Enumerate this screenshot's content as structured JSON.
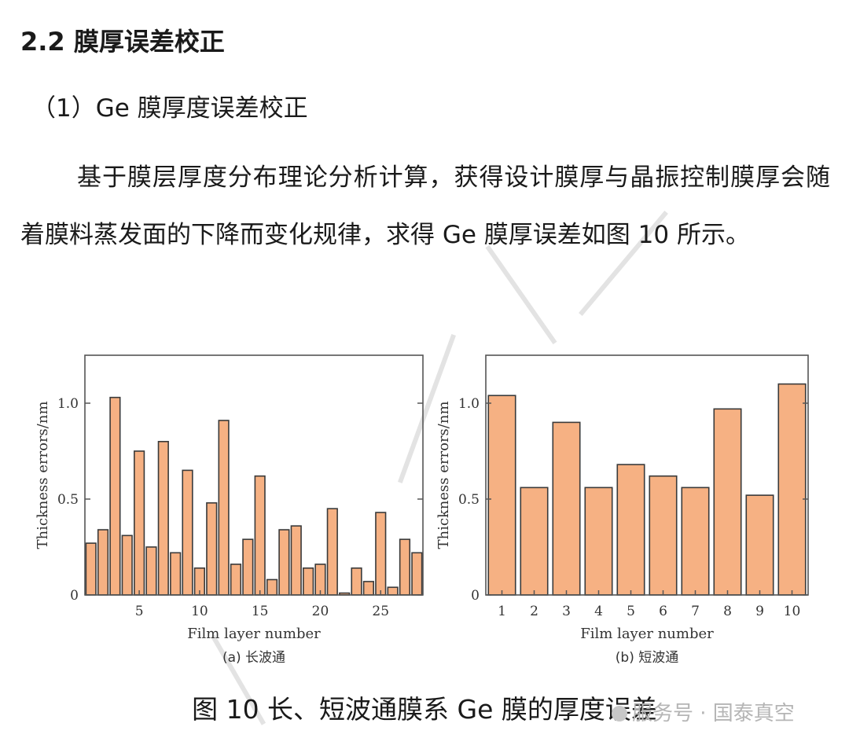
{
  "section": {
    "heading": "2.2  膜厚误差校正",
    "subheading": "（1）Ge 膜厚度误差校正",
    "paragraph": "基于膜层厚度分布理论分析计算，获得设计膜厚与晶振控制膜厚会随着膜料蒸发面的下降而变化规律，求得 Ge 膜厚误差如图 10 所示。"
  },
  "figure": {
    "caption": "图 10  长、短波通膜系 Ge 膜的厚度误差"
  },
  "watermark": {
    "text": "服务号 · 国泰真空"
  },
  "colors": {
    "bar_fill": "#F6B183",
    "bar_stroke": "#3a3a3a"
  },
  "chart_data": [
    {
      "type": "bar",
      "caption": "(a) 长波通",
      "xlabel": "Film layer number",
      "ylabel": "Thickness errors/nm",
      "ylim": [
        0,
        1.25
      ],
      "xlim": [
        0.5,
        28.5
      ],
      "yticks": [
        0,
        0.5,
        1.0
      ],
      "ytick_labels": [
        "0",
        "0.5",
        "1.0"
      ],
      "xticks": [
        5,
        10,
        15,
        20,
        25
      ],
      "xtick_labels": [
        "5",
        "10",
        "15",
        "20",
        "25"
      ],
      "x": [
        1,
        2,
        3,
        4,
        5,
        6,
        7,
        8,
        9,
        10,
        11,
        12,
        13,
        14,
        15,
        16,
        17,
        18,
        19,
        20,
        21,
        22,
        23,
        24,
        25,
        26,
        27,
        28
      ],
      "values": [
        0.27,
        0.34,
        1.03,
        0.31,
        0.75,
        0.25,
        0.8,
        0.22,
        0.65,
        0.14,
        0.48,
        0.91,
        0.16,
        0.29,
        0.62,
        0.08,
        0.34,
        0.36,
        0.14,
        0.16,
        0.45,
        0.01,
        0.14,
        0.07,
        0.43,
        0.04,
        0.29,
        0.22
      ],
      "grid": false,
      "legend": "none"
    },
    {
      "type": "bar",
      "caption": "(b) 短波通",
      "xlabel": "Film layer number",
      "ylabel": "Thickness errors/nm",
      "ylim": [
        0,
        1.25
      ],
      "xlim": [
        0.5,
        10.5
      ],
      "yticks": [
        0,
        0.5,
        1.0
      ],
      "ytick_labels": [
        "0",
        "0.5",
        "1.0"
      ],
      "xticks": [
        1,
        2,
        3,
        4,
        5,
        6,
        7,
        8,
        9,
        10
      ],
      "xtick_labels": [
        "1",
        "2",
        "3",
        "4",
        "5",
        "6",
        "7",
        "8",
        "9",
        "10"
      ],
      "x": [
        1,
        2,
        3,
        4,
        5,
        6,
        7,
        8,
        9,
        10
      ],
      "values": [
        1.04,
        0.56,
        0.9,
        0.56,
        0.68,
        0.62,
        0.56,
        0.97,
        0.52,
        1.1
      ],
      "grid": false,
      "legend": "none"
    }
  ]
}
